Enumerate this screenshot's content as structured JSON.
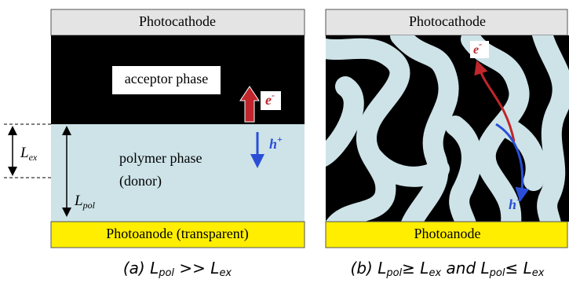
{
  "panel_a": {
    "top_electrode": "Photocathode",
    "acceptor": "acceptor phase",
    "electron": {
      "text": "e",
      "sup": "-"
    },
    "hole": {
      "text": "h",
      "sup": "+"
    },
    "polymer": "polymer phase",
    "polymer_role": "(donor)",
    "l_ex": {
      "text": "L",
      "sub": "ex"
    },
    "l_pol": {
      "text": "L",
      "sub": "pol"
    },
    "bottom_electrode": "Photoanode (transparent)",
    "caption": [
      {
        "text": "(a) "
      },
      {
        "text": "L",
        "sub": "pol"
      },
      {
        "text": " >> "
      },
      {
        "text": "L",
        "sub": "ex"
      }
    ]
  },
  "panel_b": {
    "top_electrode": "Photocathode",
    "electron": {
      "text": "e",
      "sup": "-"
    },
    "hole": {
      "text": "h",
      "sup": "+"
    },
    "bottom_electrode": "Photoanode",
    "caption": [
      {
        "text": "(b) "
      },
      {
        "text": "L",
        "sub": "pol"
      },
      {
        "text": "≥ "
      },
      {
        "text": "L",
        "sub": "ex"
      },
      {
        "text": " and "
      },
      {
        "text": "L",
        "sub": "pol"
      },
      {
        "text": "≤ "
      },
      {
        "text": "L",
        "sub": "ex"
      }
    ]
  }
}
